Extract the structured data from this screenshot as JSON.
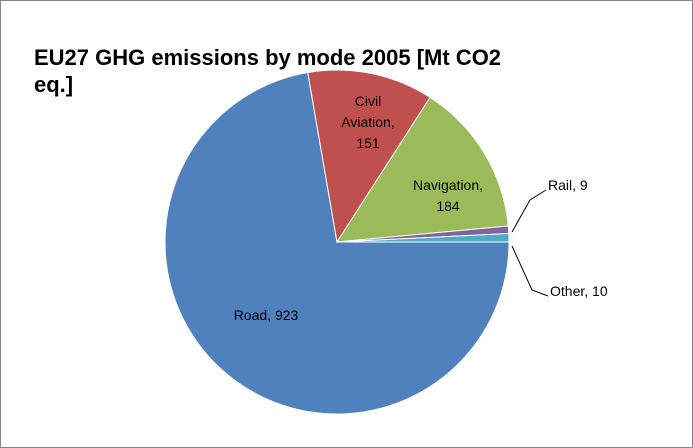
{
  "chart_data": {
    "type": "pie",
    "title": "EU27 GHG emissions by mode 2005 [Mt CO2 eq.]",
    "categories": [
      "Road",
      "Civil Aviation",
      "Navigation",
      "Rail",
      "Other"
    ],
    "values": [
      923,
      151,
      184,
      9,
      10
    ],
    "colors": [
      "#4f81bd",
      "#c0504d",
      "#9bbb59",
      "#8064a2",
      "#4bacc6"
    ]
  }
}
